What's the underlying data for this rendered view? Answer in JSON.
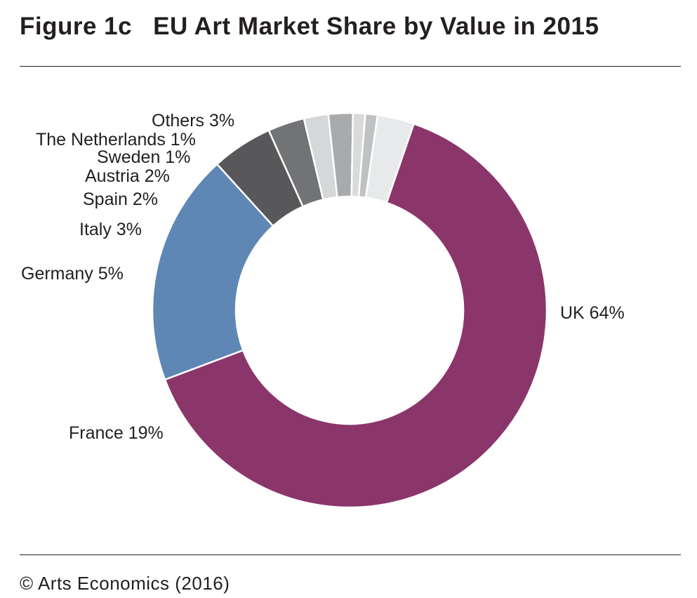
{
  "figure": {
    "number": "Figure 1c",
    "title": "EU Art Market Share by Value in 2015"
  },
  "chart_data": {
    "type": "pie",
    "donut": true,
    "title": "EU Art Market Share by Value in 2015",
    "unit": "%",
    "slices": [
      {
        "label": "UK",
        "value": 64,
        "display": "UK 64%",
        "color": "#8b366b"
      },
      {
        "label": "France",
        "value": 19,
        "display": "France 19%",
        "color": "#5f87b5"
      },
      {
        "label": "Germany",
        "value": 5,
        "display": "Germany 5%",
        "color": "#58585a"
      },
      {
        "label": "Italy",
        "value": 3,
        "display": "Italy 3%",
        "color": "#717375"
      },
      {
        "label": "Spain",
        "value": 2,
        "display": "Spain 2%",
        "color": "#d5d7d8"
      },
      {
        "label": "Austria",
        "value": 2,
        "display": "Austria 2%",
        "color": "#a8aaac"
      },
      {
        "label": "Sweden",
        "value": 1,
        "display": "Sweden 1%",
        "color": "#d9dadb"
      },
      {
        "label": "The Netherlands",
        "value": 1,
        "display": "The Netherlands 1%",
        "color": "#bfc1c3"
      },
      {
        "label": "Others",
        "value": 3,
        "display": "Others 3%",
        "color": "#e8e9ea"
      }
    ],
    "legend": "none"
  },
  "source": "© Arts Economics (2016)"
}
